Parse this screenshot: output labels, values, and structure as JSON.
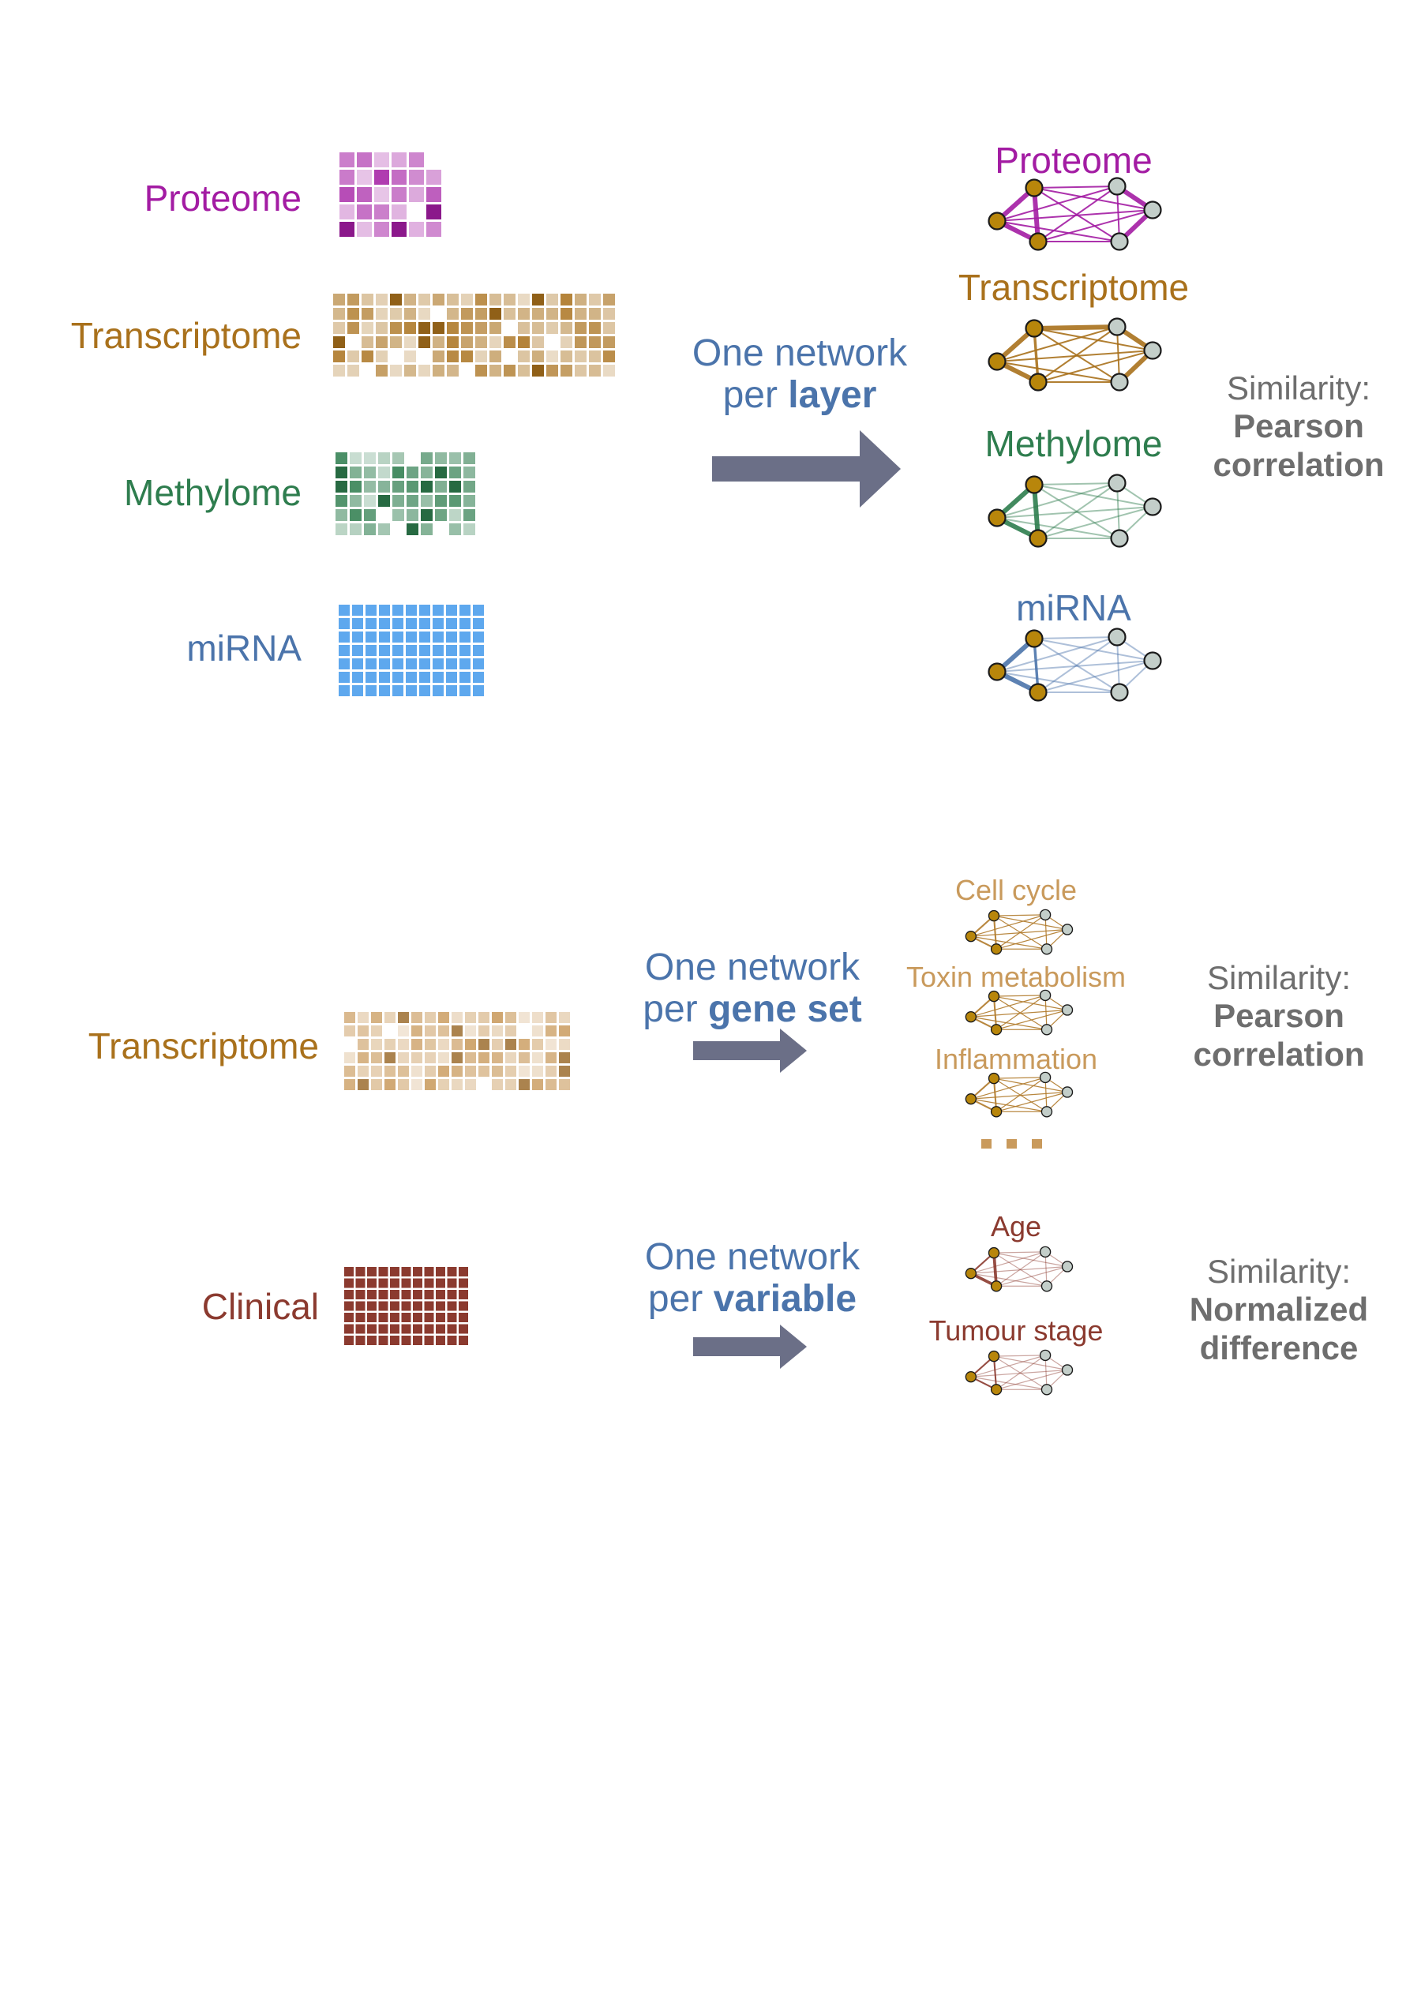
{
  "colors": {
    "proteome": "#a31ca3",
    "transcriptome": "#a9711c",
    "methylome": "#2e7d4e",
    "mirna": "#4b74ab",
    "clinical": "#8b3a2f",
    "geneset": "#c99a5c",
    "arrow": "#6b6f87",
    "sim": "#6e6e6e",
    "node_gold": "#b8860b",
    "node_grey": "#c3cec9"
  },
  "top": {
    "layers": [
      {
        "label": "Proteome",
        "color": "#a31ca3"
      },
      {
        "label": "Transcriptome",
        "color": "#a9711c"
      },
      {
        "label": "Methylome",
        "color": "#2e7d4e"
      },
      {
        "label": "miRNA",
        "color": "#4b74ab"
      }
    ],
    "method": {
      "line1": "One network",
      "line2_pre": "per ",
      "line2_bold": "layer"
    },
    "networks": [
      {
        "title": "Proteome",
        "color": "#a31ca3"
      },
      {
        "title": "Transcriptome",
        "color": "#a9711c"
      },
      {
        "title": "Methylome",
        "color": "#2e7d4e"
      },
      {
        "title": "miRNA",
        "color": "#4b74ab"
      }
    ],
    "similarity": {
      "line1": "Similarity:",
      "line2": "Pearson",
      "line3": "correlation"
    }
  },
  "bottom": {
    "transcriptome": {
      "label": "Transcriptome",
      "method": {
        "line1": "One network",
        "line2_pre": "per ",
        "line2_bold": "gene set"
      },
      "networks": [
        "Cell cycle",
        "Toxin metabolism",
        "Inflammation"
      ],
      "similarity": {
        "line1": "Similarity:",
        "line2": "Pearson",
        "line3": "correlation"
      }
    },
    "clinical": {
      "label": "Clinical",
      "method": {
        "line1": "One network",
        "line2_pre": "per ",
        "line2_bold": "variable"
      },
      "networks": [
        "Age",
        "Tumour stage"
      ],
      "similarity": {
        "line1": "Similarity:",
        "line2": "Normalized",
        "line3": "difference"
      }
    }
  }
}
